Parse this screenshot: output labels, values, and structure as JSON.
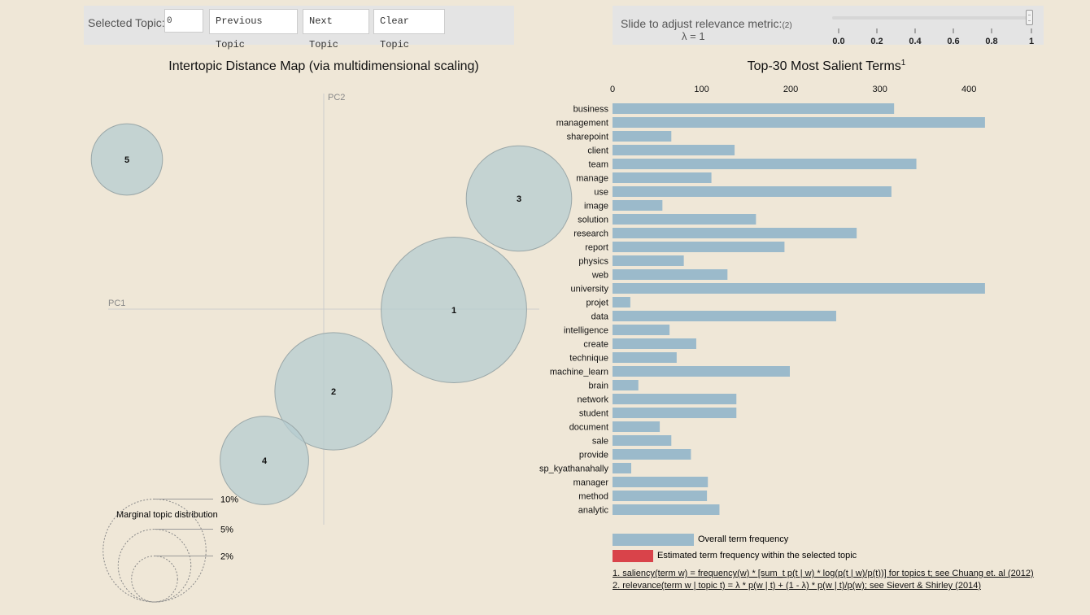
{
  "controls": {
    "selected_topic_label": "Selected Topic:",
    "selected_topic_value": "0",
    "previous_label": "Previous Topic",
    "next_label": "Next Topic",
    "clear_label": "Clear Topic",
    "slider_label": "Slide to adjust relevance metric:",
    "slider_sup": "(2)",
    "lambda_label": "λ = 1",
    "lambda_value": 1,
    "slider_ticks": [
      "0.0",
      "0.2",
      "0.4",
      "0.6",
      "0.8",
      "1"
    ]
  },
  "chart_data": [
    {
      "type": "scatter",
      "title": "Intertopic Distance Map (via multidimensional scaling)",
      "xlabel": "PC1",
      "ylabel": "PC2",
      "topics": [
        {
          "id": "1",
          "x": 0.16,
          "y": -0.001,
          "size_pct": 20.0
        },
        {
          "id": "2",
          "x": 0.012,
          "y": -0.101,
          "size_pct": 13.0
        },
        {
          "id": "3",
          "x": 0.24,
          "y": 0.136,
          "size_pct": 10.5
        },
        {
          "id": "4",
          "x": -0.073,
          "y": -0.186,
          "size_pct": 7.4
        },
        {
          "id": "5",
          "x": -0.242,
          "y": 0.184,
          "size_pct": 4.8
        }
      ],
      "xlim": [
        -0.265,
        0.265
      ],
      "ylim": [
        -0.265,
        0.265
      ],
      "legend": {
        "title": "Marginal topic distribution",
        "items": [
          {
            "label": "2%",
            "pct": 2
          },
          {
            "label": "5%",
            "pct": 5
          },
          {
            "label": "10%",
            "pct": 10
          }
        ]
      }
    },
    {
      "type": "bar",
      "title": "Top-30 Most Salient Terms",
      "title_sup": "1",
      "xlim": [
        0,
        440
      ],
      "ticks": [
        0,
        100,
        200,
        300,
        400
      ],
      "categories": [
        "business",
        "management",
        "sharepoint",
        "client",
        "team",
        "manage",
        "use",
        "image",
        "solution",
        "research",
        "report",
        "physics",
        "web",
        "university",
        "projet",
        "data",
        "intelligence",
        "create",
        "technique",
        "machine_learn",
        "brain",
        "network",
        "student",
        "document",
        "sale",
        "provide",
        "sp_kyathanahally",
        "manager",
        "method",
        "analytic"
      ],
      "series": [
        {
          "name": "Overall term frequency",
          "color": "#9bbacb",
          "values": [
            316,
            418,
            66,
            137,
            341,
            111,
            313,
            56,
            161,
            274,
            193,
            80,
            129,
            418,
            20,
            251,
            64,
            94,
            72,
            199,
            29,
            139,
            139,
            53,
            66,
            88,
            21,
            107,
            106,
            120
          ]
        }
      ],
      "legend": [
        {
          "label": "Overall term frequency",
          "color": "#9bbacb"
        },
        {
          "label": "Estimated term frequency within the selected topic",
          "color": "#d9434a"
        }
      ],
      "footnotes": [
        "1. saliency(term w) = frequency(w) * [sum_t p(t | w) * log(p(t | w)/p(t))] for topics t; see Chuang et. al (2012)",
        "2. relevance(term w | topic t) = λ * p(w | t) + (1 - λ) * p(w | t)/p(w); see Sievert & Shirley (2014)"
      ]
    }
  ]
}
